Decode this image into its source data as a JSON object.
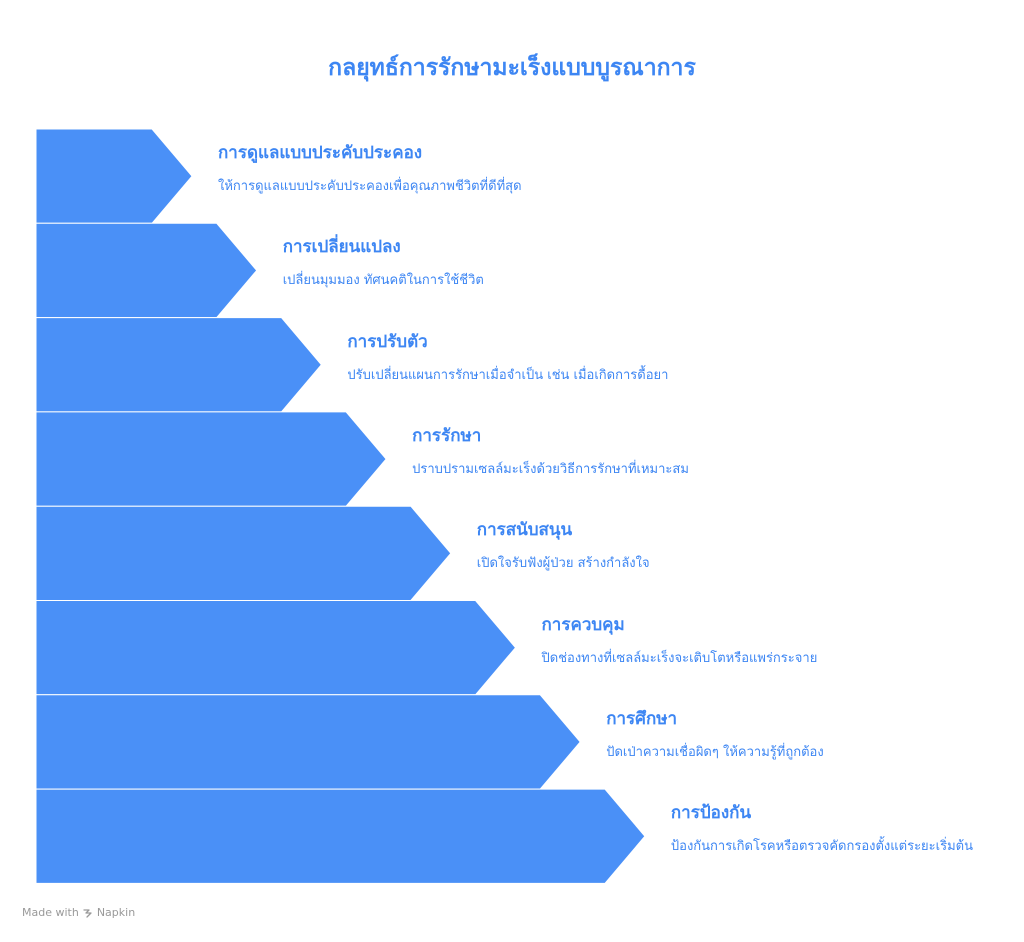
{
  "title": "กลยุทธ์การรักษามะเร็งแบบบูรณาการ",
  "colors": {
    "arrow_fill": "#4a90f7",
    "text": "#3d86f3"
  },
  "steps": [
    {
      "heading": "การดูแลแบบประคับประคอง",
      "description": "ให้การดูแลแบบประคับประคองเพื่อคุณภาพชีวิตที่ดีที่สุด"
    },
    {
      "heading": "การเปลี่ยนแปลง",
      "description": "เปลี่ยนมุมมอง ทัศนคติในการใช้ชีวิต"
    },
    {
      "heading": "การปรับตัว",
      "description": "ปรับเปลี่ยนแผนการรักษาเมื่อจำเป็น เช่น เมื่อเกิดการดื้อยา"
    },
    {
      "heading": "การรักษา",
      "description": "ปราบปรามเซลล์มะเร็งด้วยวิธีการรักษาที่เหมาะสม"
    },
    {
      "heading": "การสนับสนุน",
      "description": "เปิดใจรับฟังผู้ป่วย สร้างกำลังใจ"
    },
    {
      "heading": "การควบคุม",
      "description": "ปิดช่องทางที่เซลล์มะเร็งจะเติบโตหรือแพร่กระจาย"
    },
    {
      "heading": "การศึกษา",
      "description": "ปัดเป่าความเชื่อผิดๆ ให้ความรู้ที่ถูกต้อง"
    },
    {
      "heading": "การป้องกัน",
      "description": "ป้องกันการเกิดโรคหรือตรวจคัดกรองตั้งแต่ระยะเริ่มต้น"
    }
  ],
  "footer": {
    "made_with": "Made with",
    "brand": "Napkin",
    "brand_icon": "napkin-logo-icon"
  }
}
